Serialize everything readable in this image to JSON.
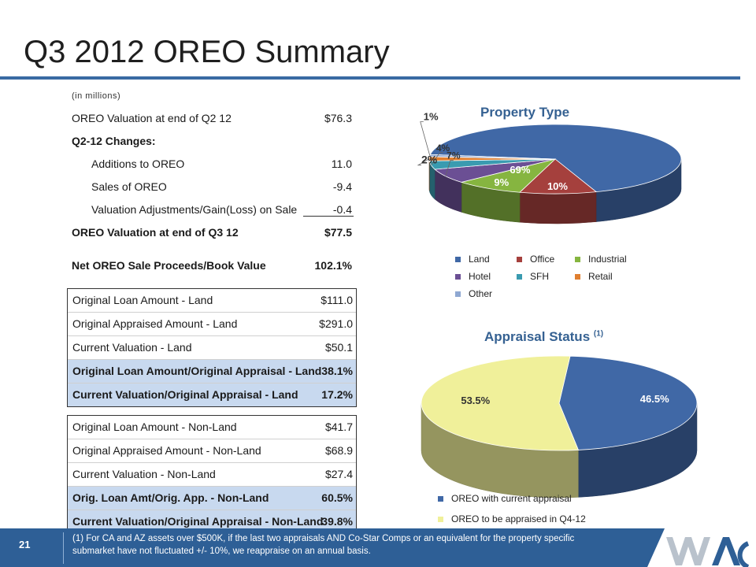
{
  "page": {
    "title": "Q3 2012 OREO Summary",
    "page_number": "21"
  },
  "units_note": "(in millions)",
  "summary_rows": [
    {
      "label": "OREO Valuation at end of Q2 12",
      "value": "$76.3"
    },
    {
      "label": "Q2-12 Changes:",
      "value": ""
    },
    {
      "label": "Additions to OREO",
      "value": "11.0"
    },
    {
      "label": "Sales of OREO",
      "value": "-9.4"
    },
    {
      "label": "Valuation Adjustments/Gain(Loss) on Sale",
      "value": "-0.4"
    },
    {
      "label": "OREO Valuation at end of Q3 12",
      "value": "$77.5"
    }
  ],
  "net_row": {
    "label": "Net OREO Sale Proceeds/Book Value",
    "value": "102.1%"
  },
  "land_rows": [
    {
      "label": "Original Loan Amount - Land",
      "value": "$111.0"
    },
    {
      "label": "Original Appraised Amount - Land",
      "value": "$291.0"
    },
    {
      "label": "Current Valuation - Land",
      "value": "$50.1"
    },
    {
      "label": "Original Loan Amount/Original Appraisal - Land",
      "value": "38.1%"
    },
    {
      "label": "Current Valuation/Original Appraisal - Land",
      "value": "17.2%"
    }
  ],
  "nonland_rows": [
    {
      "label": "Original Loan Amount - Non-Land",
      "value": "$41.7"
    },
    {
      "label": "Original Appraised Amount - Non-Land",
      "value": "$68.9"
    },
    {
      "label": "Current Valuation - Non-Land",
      "value": "$27.4"
    },
    {
      "label": "Orig. Loan Amt/Orig. App. - Non-Land",
      "value": "60.5%"
    },
    {
      "label": "Current Valuation/Original Appraisal - Non-Land",
      "value": "39.8%"
    }
  ],
  "footnote": "(1)  For CA and AZ assets over $500K, if the last two appraisals AND Co-Star Comps or an equivalent for the property specific submarket have not fluctuated +/- 10%, we reappraise on an annual basis.",
  "chart_data": [
    {
      "type": "pie",
      "title": "Property Type",
      "categories": [
        "Land",
        "Office",
        "Industrial",
        "Hotel",
        "SFH",
        "Retail",
        "Other"
      ],
      "values": [
        69,
        10,
        9,
        7,
        4,
        2,
        1
      ],
      "data_labels": [
        "69%",
        "10%",
        "9%",
        "7%",
        "4%",
        "2%",
        "1%"
      ],
      "colors": [
        "#4068a6",
        "#a5403d",
        "#86b540",
        "#6b4f94",
        "#3a9bb0",
        "#e07f30",
        "#8fa8d2"
      ],
      "legend_position": "bottom"
    },
    {
      "type": "pie",
      "title": "Appraisal Status",
      "title_superscript": "(1)",
      "categories": [
        "OREO with current appraisal",
        "OREO to be appraised in Q4-12"
      ],
      "values": [
        46.5,
        53.5
      ],
      "data_labels": [
        "46.5%",
        "53.5%"
      ],
      "colors": [
        "#4068a6",
        "#f0f09a"
      ],
      "legend_position": "bottom"
    }
  ]
}
